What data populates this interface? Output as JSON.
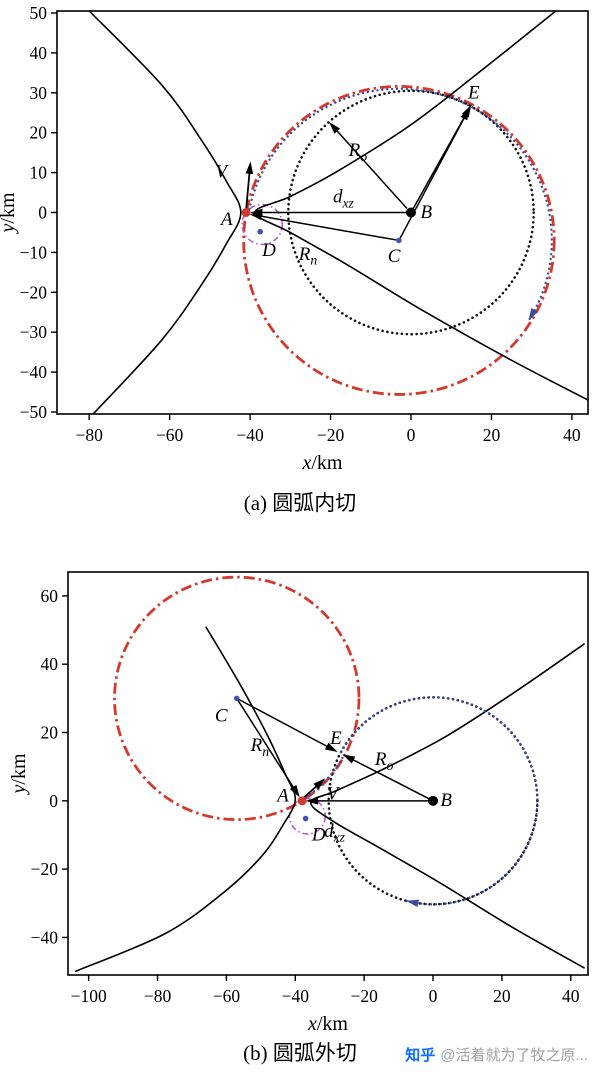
{
  "watermark": {
    "logo": "知乎",
    "handle": "@活着就为了牧之原..."
  },
  "charts": [
    {
      "id": "figure-a",
      "caption": "(a) 圆弧内切",
      "xlabel_parts": [
        {
          "t": "x",
          "i": true
        },
        {
          "t": "/km",
          "i": false
        }
      ],
      "ylabel_parts": [
        {
          "t": "y",
          "i": true
        },
        {
          "t": "/km",
          "i": false
        }
      ],
      "chart_data": {
        "type": "line",
        "title": "(a) 圆弧内切",
        "xlabel": "x/km",
        "ylabel": "y/km",
        "xlim": [
          -88,
          44
        ],
        "ylim": [
          -50.5,
          50.5
        ],
        "xticks": [
          -80,
          -60,
          -40,
          -20,
          0,
          20,
          40
        ],
        "yticks": [
          -50,
          -40,
          -30,
          -20,
          -10,
          0,
          10,
          20,
          30,
          40,
          50
        ],
        "grid": false,
        "circles": [
          {
            "name": "new-orbit-circle-Rn",
            "cx": -3,
            "cy": -7,
            "r": 38.6,
            "color": "#d23a2e",
            "style": "dashdot",
            "w": 2.8
          },
          {
            "name": "original-orbit-circle-Ro",
            "cx": 0,
            "cy": 0,
            "r": 30.5,
            "color": "#151515",
            "style": "dot",
            "w": 2.6
          },
          {
            "name": "capture-zone-circle-D",
            "cx": -37,
            "cy": -3,
            "r": 5,
            "color": "#b65cc8",
            "style": "dashdot_sm",
            "w": 1.6
          }
        ],
        "arcs": [
          {
            "name": "transfer-trajectory-arc",
            "cx": -3,
            "cy": -7,
            "r": 38.0,
            "a0": 170,
            "a1": -32,
            "color": "#3c4c9e",
            "style": "dot",
            "w": 2.3,
            "arrow": true
          }
        ],
        "curves": [
          {
            "name": "hyperbola-left-branch",
            "color": "#000000",
            "w": 1.6,
            "pts": [
              [
                -80,
                50.5
              ],
              [
                -62,
                32
              ],
              [
                -52,
                18
              ],
              [
                -46,
                8
              ],
              [
                -42.3,
                0
              ],
              [
                -46,
                -8
              ],
              [
                -52,
                -18
              ],
              [
                -62,
                -32
              ],
              [
                -79,
                -50.5
              ]
            ]
          },
          {
            "name": "hyperbola-right-branch",
            "color": "#000000",
            "w": 1.6,
            "pts": [
              [
                36,
                50.5
              ],
              [
                18,
                36
              ],
              [
                0,
                22
              ],
              [
                -18,
                10.5
              ],
              [
                -30,
                4
              ],
              [
                -38.8,
                0
              ],
              [
                -30,
                -5
              ],
              [
                -16,
                -13
              ],
              [
                2,
                -24
              ],
              [
                24,
                -36.5
              ],
              [
                44,
                -47
              ]
            ]
          }
        ],
        "segments": [
          {
            "name": "dxz-line",
            "x1": 0,
            "y1": 0,
            "x2": -40,
            "y2": 0,
            "arrow": true
          },
          {
            "name": "rn-line",
            "x1": -3,
            "y1": -7,
            "x2": -40.2,
            "y2": -0.4,
            "arrow": true
          },
          {
            "name": "be-line",
            "x1": 0,
            "y1": 0,
            "x2": 15,
            "y2": 27,
            "arrow": true
          },
          {
            "name": "ce-line",
            "x1": -3,
            "y1": -7,
            "x2": 14.6,
            "y2": 26.3,
            "arrow": true
          },
          {
            "name": "ro-arrow",
            "x1": -1,
            "y1": 1,
            "x2": -20.4,
            "y2": 22.7,
            "arrow": true
          },
          {
            "name": "velocity-arrow",
            "x1": -41,
            "y1": 0.5,
            "x2": -39.9,
            "y2": 12.8,
            "arrow": true,
            "w": 1.8
          }
        ],
        "points": [
          {
            "name": "point-A",
            "x": -41,
            "y": 0,
            "r": 4.5,
            "color": "#d23a2e"
          },
          {
            "name": "point-B",
            "x": 0,
            "y": 0,
            "r": 5,
            "color": "#000000"
          },
          {
            "name": "point-C",
            "x": -3,
            "y": -7,
            "r": 2.8,
            "color": "#3c55b0"
          },
          {
            "name": "point-D",
            "x": -37.5,
            "y": -4.8,
            "r": 2.8,
            "color": "#3c55b0"
          }
        ],
        "labels": [
          {
            "name": "label-A",
            "x": -45.8,
            "y": -1.5,
            "parts": [
              {
                "t": "A",
                "i": true
              }
            ]
          },
          {
            "name": "label-B",
            "x": 3.8,
            "y": 0.3,
            "parts": [
              {
                "t": "B",
                "i": true
              }
            ]
          },
          {
            "name": "label-C",
            "x": -4.2,
            "y": -10.8,
            "parts": [
              {
                "t": "C",
                "i": true
              }
            ]
          },
          {
            "name": "label-D",
            "x": -35.3,
            "y": -9.2,
            "parts": [
              {
                "t": "D",
                "i": true
              }
            ]
          },
          {
            "name": "label-E",
            "x": 15.6,
            "y": 30.2,
            "parts": [
              {
                "t": "E",
                "i": true
              }
            ]
          },
          {
            "name": "label-V",
            "x": -47.2,
            "y": 10.5,
            "parts": [
              {
                "t": "V",
                "i": true
              }
            ]
          },
          {
            "name": "label-Ro",
            "x": -13.2,
            "y": 15.8,
            "parts": [
              {
                "t": "R",
                "i": true
              },
              {
                "t": "o",
                "i": true,
                "sub": true
              }
            ]
          },
          {
            "name": "label-dxz",
            "x": -16.8,
            "y": 4.2,
            "parts": [
              {
                "t": "d",
                "i": true
              },
              {
                "t": "xz",
                "i": true,
                "sub": true
              }
            ]
          },
          {
            "name": "label-Rn",
            "x": -25.6,
            "y": -10.2,
            "parts": [
              {
                "t": "R",
                "i": true
              },
              {
                "t": "n",
                "i": true,
                "sub": true
              }
            ]
          }
        ]
      }
    },
    {
      "id": "figure-b",
      "caption": "(b) 圆弧外切",
      "xlabel_parts": [
        {
          "t": "x",
          "i": true
        },
        {
          "t": "/km",
          "i": false
        }
      ],
      "ylabel_parts": [
        {
          "t": "y",
          "i": true
        },
        {
          "t": "/km",
          "i": false
        }
      ],
      "chart_data": {
        "type": "line",
        "title": "(b) 圆弧外切",
        "xlabel": "x/km",
        "ylabel": "y/km",
        "xlim": [
          -106,
          45
        ],
        "ylim": [
          -51,
          67
        ],
        "xticks": [
          -100,
          -80,
          -60,
          -40,
          -20,
          0,
          20,
          40
        ],
        "yticks": [
          -40,
          -20,
          0,
          20,
          40,
          60
        ],
        "grid": false,
        "circles": [
          {
            "name": "new-orbit-circle-Rn",
            "cx": -57,
            "cy": 30,
            "r": 35.5,
            "color": "#d23a2e",
            "style": "dashdot",
            "w": 2.8
          },
          {
            "name": "original-orbit-circle-Ro",
            "cx": 0,
            "cy": 0,
            "r": 30.3,
            "color": "#151515",
            "style": "dot",
            "w": 2.6
          },
          {
            "name": "capture-zone-circle-D",
            "cx": -36.5,
            "cy": -4.5,
            "r": 5.2,
            "color": "#b65cc8",
            "style": "dashdot_sm",
            "w": 1.6
          }
        ],
        "arcs": [
          {
            "name": "transfer-arc-A-to-E",
            "cx": -57,
            "cy": 30,
            "r": 35.3,
            "a0": -57.5,
            "a1": -28.5,
            "color": "#3c4c9e",
            "style": "dot",
            "w": 2.3,
            "arrow": false
          },
          {
            "name": "trajectory-arc-around-B",
            "cx": 0,
            "cy": 0,
            "r": 30.3,
            "a0": 152,
            "a1": -105,
            "color": "#3c4c9e",
            "style": "dot",
            "w": 2.3,
            "arrow": true
          }
        ],
        "curves": [
          {
            "name": "hyperbola-left-branch",
            "color": "#000000",
            "w": 1.6,
            "pts": [
              [
                -66,
                51
              ],
              [
                -56,
                34
              ],
              [
                -48,
                19
              ],
              [
                -43,
                8
              ],
              [
                -40,
                0.5
              ],
              [
                -43.5,
                -7
              ],
              [
                -50,
                -16.5
              ],
              [
                -61,
                -27
              ],
              [
                -78,
                -39
              ],
              [
                -104,
                -50
              ]
            ]
          },
          {
            "name": "hyperbola-right-branch",
            "color": "#000000",
            "w": 1.6,
            "pts": [
              [
                44,
                46
              ],
              [
                24,
                32
              ],
              [
                4,
                19
              ],
              [
                -14,
                9.5
              ],
              [
                -28,
                3
              ],
              [
                -35.5,
                -0.5
              ],
              [
                -29,
                -6
              ],
              [
                -16,
                -13.5
              ],
              [
                2,
                -24
              ],
              [
                23,
                -37
              ],
              [
                44,
                -49
              ]
            ]
          }
        ],
        "segments": [
          {
            "name": "dxz-line",
            "x1": 0,
            "y1": 0,
            "x2": -37,
            "y2": 0,
            "arrow": true
          },
          {
            "name": "rn-line",
            "x1": -57,
            "y1": 30,
            "x2": -38.7,
            "y2": 1,
            "arrow": true
          },
          {
            "name": "ce-line",
            "x1": -57,
            "y1": 30,
            "x2": -27.7,
            "y2": 14.3,
            "arrow": true
          },
          {
            "name": "be-line",
            "x1": 0,
            "y1": 0,
            "x2": -26.3,
            "y2": 13.6,
            "arrow": true
          },
          {
            "name": "velocity-arrow",
            "x1": -38,
            "y1": 0.5,
            "x2": -31.3,
            "y2": 6.6,
            "arrow": true,
            "w": 1.8
          }
        ],
        "points": [
          {
            "name": "point-A",
            "x": -38,
            "y": 0,
            "r": 4.5,
            "color": "#d23a2e"
          },
          {
            "name": "point-B",
            "x": 0,
            "y": 0,
            "r": 5,
            "color": "#000000"
          },
          {
            "name": "point-C",
            "x": -57,
            "y": 30,
            "r": 2.8,
            "color": "#3c55b0"
          },
          {
            "name": "point-D",
            "x": -37,
            "y": -5.2,
            "r": 2.8,
            "color": "#3c55b0"
          }
        ],
        "labels": [
          {
            "name": "label-C",
            "x": -61.5,
            "y": 25.2,
            "parts": [
              {
                "t": "C",
                "i": true
              }
            ]
          },
          {
            "name": "label-Rn",
            "x": -50.3,
            "y": 16.5,
            "parts": [
              {
                "t": "R",
                "i": true
              },
              {
                "t": "n",
                "i": true,
                "sub": true
              }
            ]
          },
          {
            "name": "label-E",
            "x": -28.2,
            "y": 18.6,
            "parts": [
              {
                "t": "E",
                "i": true
              }
            ]
          },
          {
            "name": "label-Ro",
            "x": -14.2,
            "y": 12.4,
            "parts": [
              {
                "t": "R",
                "i": true
              },
              {
                "t": "o",
                "i": true,
                "sub": true
              }
            ]
          },
          {
            "name": "label-A",
            "x": -43.6,
            "y": 1.8,
            "parts": [
              {
                "t": "A",
                "i": true
              }
            ]
          },
          {
            "name": "label-V",
            "x": -29.2,
            "y": 2.4,
            "parts": [
              {
                "t": "V",
                "i": true
              }
            ]
          },
          {
            "name": "label-dxz",
            "x": -28.6,
            "y": -8.6,
            "parts": [
              {
                "t": "d",
                "i": true
              },
              {
                "t": "xz",
                "i": true,
                "sub": true
              }
            ]
          },
          {
            "name": "label-B",
            "x": 3.8,
            "y": 0.5,
            "parts": [
              {
                "t": "B",
                "i": true
              }
            ]
          },
          {
            "name": "label-D",
            "x": -33.2,
            "y": -9.6,
            "parts": [
              {
                "t": "D",
                "i": true
              }
            ]
          }
        ]
      }
    }
  ]
}
